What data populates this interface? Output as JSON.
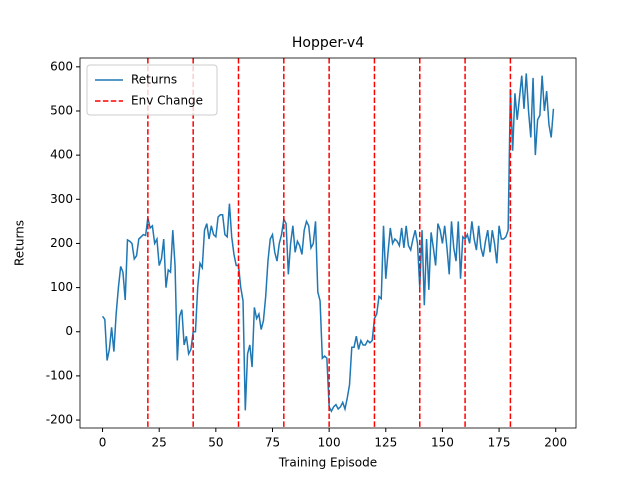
{
  "chart_data": {
    "type": "line",
    "title": "Hopper-v4",
    "x_label": "Training Episode",
    "y_label": "Returns",
    "x": [
      0,
      1,
      2,
      3,
      4,
      5,
      6,
      7,
      8,
      9,
      10,
      11,
      12,
      13,
      14,
      15,
      16,
      17,
      18,
      19,
      20,
      21,
      22,
      23,
      24,
      25,
      26,
      27,
      28,
      29,
      30,
      31,
      32,
      33,
      34,
      35,
      36,
      37,
      38,
      39,
      40,
      41,
      42,
      43,
      44,
      45,
      46,
      47,
      48,
      49,
      50,
      51,
      52,
      53,
      54,
      55,
      56,
      57,
      58,
      59,
      60,
      61,
      62,
      63,
      64,
      65,
      66,
      67,
      68,
      69,
      70,
      71,
      72,
      73,
      74,
      75,
      76,
      77,
      78,
      79,
      80,
      81,
      82,
      83,
      84,
      85,
      86,
      87,
      88,
      89,
      90,
      91,
      92,
      93,
      94,
      95,
      96,
      97,
      98,
      99,
      100,
      101,
      102,
      103,
      104,
      105,
      106,
      107,
      108,
      109,
      110,
      111,
      112,
      113,
      114,
      115,
      116,
      117,
      118,
      119,
      120,
      121,
      122,
      123,
      124,
      125,
      126,
      127,
      128,
      129,
      130,
      131,
      132,
      133,
      134,
      135,
      136,
      137,
      138,
      139,
      140,
      141,
      142,
      143,
      144,
      145,
      146,
      147,
      148,
      149,
      150,
      151,
      152,
      153,
      154,
      155,
      156,
      157,
      158,
      159,
      160,
      161,
      162,
      163,
      164,
      165,
      166,
      167,
      168,
      169,
      170,
      171,
      172,
      173,
      174,
      175,
      176,
      177,
      178,
      179,
      180,
      181,
      182,
      183,
      184,
      185,
      186,
      187,
      188,
      189,
      190,
      191,
      192,
      193,
      194,
      195,
      196,
      197,
      198,
      199
    ],
    "series": [
      {
        "name": "Returns",
        "color": "#1f77b4",
        "values": [
          35,
          28,
          -65,
          -40,
          10,
          -45,
          40,
          100,
          148,
          135,
          72,
          208,
          205,
          200,
          165,
          172,
          210,
          215,
          220,
          218,
          258,
          235,
          240,
          200,
          210,
          150,
          165,
          210,
          100,
          140,
          135,
          230,
          150,
          -65,
          35,
          50,
          -30,
          -10,
          -50,
          -40,
          0,
          0,
          100,
          155,
          145,
          230,
          245,
          210,
          240,
          220,
          215,
          260,
          265,
          265,
          220,
          215,
          290,
          215,
          175,
          150,
          150,
          100,
          70,
          -178,
          -50,
          -30,
          -80,
          55,
          30,
          40,
          5,
          25,
          80,
          160,
          210,
          220,
          180,
          160,
          200,
          220,
          255,
          245,
          130,
          200,
          240,
          180,
          205,
          195,
          175,
          230,
          250,
          240,
          190,
          200,
          250,
          90,
          70,
          -60,
          -55,
          -60,
          -170,
          -180,
          -170,
          -165,
          -175,
          -170,
          -160,
          -175,
          -150,
          -120,
          -35,
          -35,
          -10,
          -40,
          -20,
          -30,
          -30,
          -20,
          -25,
          -20,
          30,
          40,
          80,
          75,
          240,
          120,
          180,
          235,
          200,
          210,
          205,
          195,
          235,
          190,
          240,
          195,
          185,
          210,
          230,
          200,
          100,
          230,
          60,
          210,
          95,
          225,
          190,
          150,
          245,
          230,
          200,
          240,
          190,
          130,
          250,
          190,
          160,
          250,
          120,
          215,
          210,
          220,
          200,
          250,
          210,
          185,
          240,
          190,
          170,
          205,
          230,
          180,
          230,
          200,
          155,
          240,
          210,
          210,
          215,
          230,
          550,
          410,
          540,
          480,
          530,
          580,
          505,
          585,
          500,
          440,
          575,
          400,
          480,
          490,
          580,
          500,
          545,
          470,
          440,
          505
        ]
      }
    ],
    "vlines": {
      "name": "Env Change",
      "color": "#ff0000",
      "x": [
        20,
        40,
        60,
        80,
        100,
        120,
        140,
        160,
        180
      ]
    },
    "xlim": [
      -9.95,
      208.95
    ],
    "xticks": [
      0,
      25,
      50,
      75,
      100,
      125,
      150,
      175,
      200
    ],
    "ylim": [
      -218,
      620
    ],
    "yticks": [
      -200,
      -100,
      0,
      100,
      200,
      300,
      400,
      500,
      600
    ],
    "legend": "upper left",
    "grid": false
  }
}
